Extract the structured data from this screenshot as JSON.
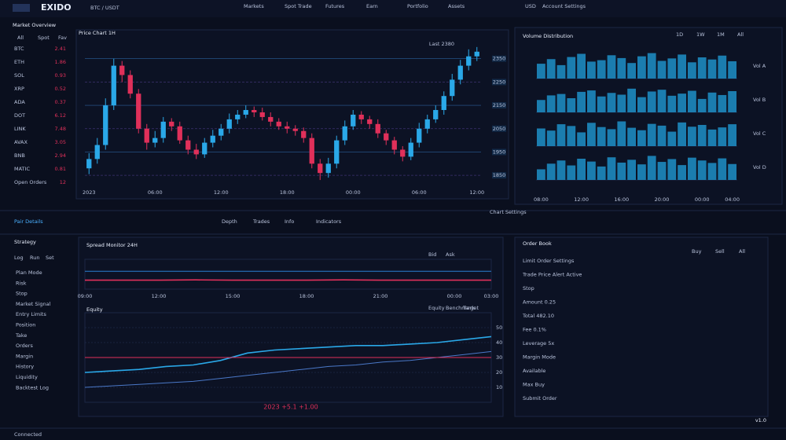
{
  "header": {
    "logo": "EXIDO",
    "pair": "BTC / USDT",
    "menu": [
      "Markets",
      "Spot Trade",
      "Futures",
      "Earn",
      "Portfolio",
      "Assets"
    ],
    "account": "USD",
    "user": "Account Settings"
  },
  "sidebar": {
    "title": "Market Overview",
    "tabs": [
      "All",
      "Spot",
      "Fav"
    ],
    "items": [
      {
        "label": "BTC",
        "value": "2.41"
      },
      {
        "label": "ETH",
        "value": "1.86"
      },
      {
        "label": "SOL",
        "value": "0.93"
      },
      {
        "label": "XRP",
        "value": "0.52"
      },
      {
        "label": "ADA",
        "value": "0.37"
      },
      {
        "label": "DOT",
        "value": "6.12"
      },
      {
        "label": "LINK",
        "value": "7.48"
      },
      {
        "label": "AVAX",
        "value": "3.05"
      },
      {
        "label": "BNB",
        "value": "2.94"
      },
      {
        "label": "MATIC",
        "value": "0.81"
      },
      {
        "label": "Open Orders",
        "value": "12"
      }
    ]
  },
  "chart_data": [
    {
      "type": "candlestick",
      "title": "Price Chart 1H",
      "legend": "Last 2380",
      "up_color": "#2aa8e8",
      "down_color": "#e0305a",
      "categories": [
        "2023",
        null,
        null,
        null,
        null,
        null,
        null,
        null,
        "06:00",
        null,
        null,
        null,
        null,
        null,
        null,
        null,
        "12:00",
        null,
        null,
        null,
        null,
        null,
        null,
        null,
        "18:00",
        null,
        null,
        null,
        null,
        null,
        null,
        null,
        "00:00",
        null,
        null,
        null,
        null,
        null,
        null,
        null,
        "06:00",
        null,
        null,
        null,
        null,
        null,
        null,
        "12:00"
      ],
      "open": [
        1880,
        1920,
        1980,
        2150,
        2320,
        2280,
        2200,
        2050,
        1990,
        2010,
        2080,
        2060,
        2000,
        1960,
        1940,
        1990,
        2020,
        2050,
        2090,
        2110,
        2130,
        2120,
        2100,
        2080,
        2060,
        2050,
        2040,
        2010,
        1900,
        1860,
        1900,
        2000,
        2060,
        2110,
        2090,
        2070,
        2030,
        2000,
        1960,
        1930,
        1990,
        2050,
        2090,
        2130,
        2190,
        2260,
        2320,
        2360
      ],
      "high": [
        1945,
        2010,
        2180,
        2350,
        2340,
        2300,
        2220,
        2070,
        2040,
        2100,
        2095,
        2080,
        2020,
        1985,
        2010,
        2045,
        2070,
        2115,
        2130,
        2150,
        2145,
        2140,
        2120,
        2095,
        2080,
        2065,
        2055,
        2030,
        1920,
        1925,
        2020,
        2085,
        2130,
        2125,
        2105,
        2090,
        2045,
        2015,
        1975,
        2010,
        2075,
        2110,
        2150,
        2210,
        2285,
        2345,
        2390,
        2400
      ],
      "low": [
        1855,
        1900,
        1960,
        2130,
        2250,
        2180,
        2030,
        1960,
        1970,
        1990,
        2040,
        1985,
        1940,
        1920,
        1925,
        1970,
        2000,
        2030,
        2070,
        2095,
        2100,
        2085,
        2060,
        2045,
        2030,
        2020,
        1990,
        1880,
        1830,
        1840,
        1880,
        1980,
        2045,
        2070,
        2050,
        2010,
        1980,
        1940,
        1910,
        1915,
        1970,
        2030,
        2075,
        2110,
        2170,
        2240,
        2300,
        2340
      ],
      "close": [
        1920,
        1980,
        2150,
        2320,
        2280,
        2200,
        2050,
        1990,
        2010,
        2080,
        2060,
        2000,
        1960,
        1940,
        1990,
        2020,
        2050,
        2090,
        2110,
        2130,
        2120,
        2100,
        2080,
        2060,
        2050,
        2040,
        2010,
        1900,
        1860,
        1900,
        2000,
        2060,
        2110,
        2090,
        2070,
        2030,
        2000,
        1960,
        1930,
        1990,
        2050,
        2090,
        2130,
        2190,
        2260,
        2320,
        2360,
        2380
      ],
      "ylim": [
        1800,
        2450
      ],
      "yticks": [
        1850,
        1950,
        2050,
        2150,
        2250,
        2350
      ]
    },
    {
      "type": "bar",
      "title": "Volume Distribution",
      "tabs": [
        "1D",
        "1W",
        "1M",
        "All"
      ],
      "categories": [
        "08:00",
        null,
        null,
        null,
        "12:00",
        null,
        null,
        null,
        "16:00",
        null,
        null,
        null,
        "20:00",
        null,
        null,
        null,
        "00:00",
        null,
        null,
        "04:00"
      ],
      "series": [
        {
          "name": "Vol A",
          "color": "#1e90c8",
          "values": [
            42,
            55,
            38,
            61,
            70,
            48,
            52,
            66,
            58,
            44,
            63,
            72,
            50,
            57,
            68,
            46,
            60,
            54,
            65,
            49
          ]
        },
        {
          "name": "Vol B",
          "color": "#1e90c8",
          "values": [
            35,
            48,
            52,
            40,
            58,
            62,
            45,
            55,
            50,
            67,
            43,
            59,
            64,
            47,
            53,
            61,
            38,
            56,
            49,
            60
          ]
        },
        {
          "name": "Vol C",
          "color": "#1e90c8",
          "values": [
            50,
            44,
            62,
            57,
            39,
            66,
            54,
            48,
            70,
            52,
            45,
            63,
            58,
            41,
            67,
            55,
            60,
            47,
            53,
            62
          ]
        },
        {
          "name": "Vol D",
          "color": "#1e90c8",
          "values": [
            30,
            46,
            55,
            41,
            60,
            52,
            38,
            64,
            49,
            57,
            44,
            68,
            51,
            59,
            42,
            63,
            55,
            48,
            61,
            45
          ]
        }
      ],
      "ylim": [
        0,
        80
      ]
    },
    {
      "type": "line",
      "title": "Spread Monitor 24H",
      "categories": [
        "09:00",
        null,
        "12:00",
        null,
        "15:00",
        null,
        "18:00",
        null,
        "21:00",
        null,
        "00:00",
        "03:00"
      ],
      "series": [
        {
          "name": "Bid",
          "color": "#e0305a",
          "values": [
            3,
            3,
            3,
            3.1,
            3,
            3,
            3,
            3.1,
            3,
            3,
            3,
            3
          ]
        },
        {
          "name": "Ask",
          "color": "#2a7fd0",
          "values": [
            6,
            6,
            6,
            6,
            6,
            6,
            6,
            6,
            6,
            6,
            6,
            6
          ]
        }
      ],
      "ylim": [
        0,
        10
      ]
    },
    {
      "type": "line",
      "title": "Equity",
      "annotation": "2023  +5.1  +1.00",
      "categories": [
        null,
        null,
        null,
        null,
        null,
        null,
        null,
        null,
        null,
        null,
        null,
        null,
        null,
        null,
        null,
        null
      ],
      "series": [
        {
          "name": "Equity",
          "color": "#2aa8e8",
          "values": [
            20,
            21,
            22,
            24,
            25,
            28,
            33,
            35,
            36,
            37,
            38,
            38,
            39,
            40,
            42,
            44
          ]
        },
        {
          "name": "Benchmark",
          "color": "#4a78c8",
          "values": [
            10,
            11,
            12,
            13,
            14,
            16,
            18,
            20,
            22,
            24,
            25,
            27,
            28,
            30,
            32,
            34
          ]
        },
        {
          "name": "Target",
          "color": "#e0305a",
          "values": [
            30,
            30,
            30,
            30,
            30,
            30,
            30,
            30,
            30,
            30,
            30,
            30,
            30,
            30,
            30,
            30
          ]
        }
      ],
      "ylim": [
        0,
        60
      ],
      "yticks": [
        10,
        20,
        30,
        40,
        50
      ]
    }
  ],
  "toolbar": {
    "left": "Pair Details",
    "items": [
      "Depth",
      "Trades",
      "Info",
      "Indicators"
    ],
    "right": "Chart Settings"
  },
  "lower_left": {
    "title": "Strategy",
    "tabs": [
      "Log",
      "Run",
      "Set"
    ],
    "items": [
      "Plan Mode",
      "Risk",
      "Stop",
      "Market Signal",
      "Entry Limits",
      "Position",
      "Take",
      "Orders",
      "Margin",
      "History",
      "Liquidity",
      "Backtest Log"
    ]
  },
  "orders": {
    "title": "Order Book",
    "tabs": [
      "Buy",
      "Sell",
      "All"
    ],
    "rows": [
      "Limit Order Settings",
      "Trade Price Alert Active",
      "Stop",
      "Amount 0.25",
      "Total 482.10",
      "Fee 0.1%",
      "Leverage 5x",
      "Margin Mode",
      "Available",
      "Max Buy",
      "Submit Order"
    ]
  },
  "footer": {
    "left": "Connected",
    "right": "v1.0"
  }
}
